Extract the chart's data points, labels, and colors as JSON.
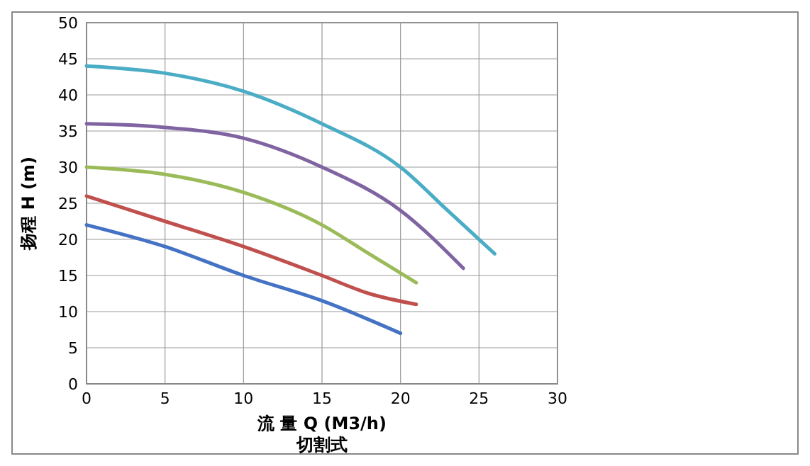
{
  "chart_data": {
    "type": "line",
    "xlabel": "流 量 Q (M3/h)",
    "ylabel": "扬程 H (m)",
    "annotations": [
      "切割式"
    ],
    "xlim": [
      0,
      30
    ],
    "xticks": [
      0,
      5,
      10,
      15,
      20,
      25,
      30
    ],
    "ylim": [
      0,
      50
    ],
    "yticks": [
      0,
      5,
      10,
      15,
      20,
      25,
      30,
      35,
      40,
      45,
      50
    ],
    "grid": true,
    "marker": "none",
    "line_style": "solid",
    "series": [
      {
        "color": "#4472c4",
        "x": [
          0,
          5,
          10,
          15,
          20
        ],
        "values": [
          22,
          19,
          15,
          11.5,
          7
        ]
      },
      {
        "color": "#c0504d",
        "x": [
          0,
          5,
          10,
          15,
          18,
          21
        ],
        "values": [
          26,
          22.5,
          19,
          15,
          12.5,
          11
        ]
      },
      {
        "color": "#9bbb59",
        "x": [
          0,
          5,
          10,
          15,
          18,
          21
        ],
        "values": [
          30,
          29,
          26.5,
          22,
          18,
          14
        ]
      },
      {
        "color": "#8064a2",
        "x": [
          0,
          3,
          5,
          10,
          15,
          20,
          24
        ],
        "values": [
          36,
          35.8,
          35.5,
          34,
          30,
          24,
          16
        ]
      },
      {
        "color": "#4bacc6",
        "x": [
          0,
          5,
          10,
          15,
          20,
          23,
          26
        ],
        "values": [
          44,
          43,
          40.5,
          36,
          30,
          24,
          18
        ]
      }
    ]
  }
}
